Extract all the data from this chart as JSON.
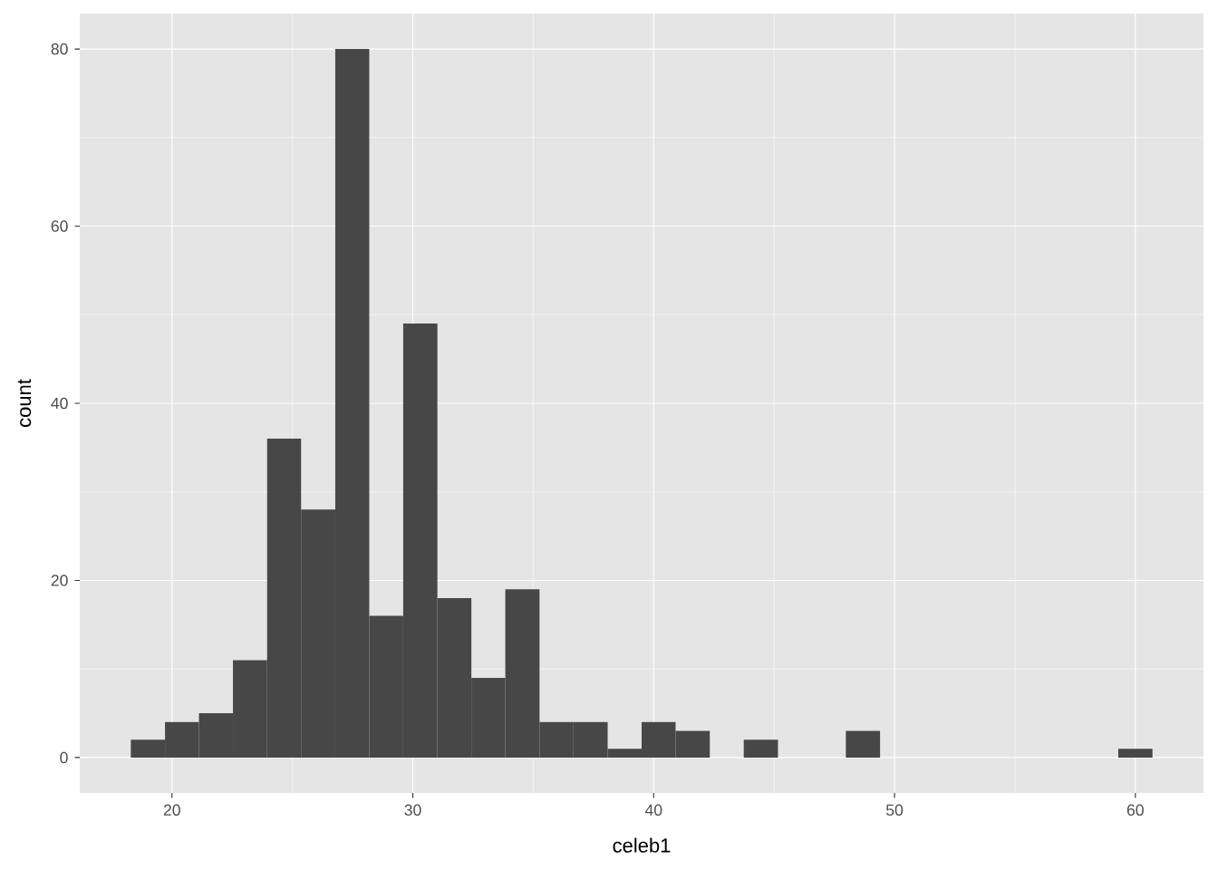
{
  "chart_data": {
    "type": "histogram",
    "xlabel": "celeb1",
    "ylabel": "count",
    "bins": [
      18.29,
      19.71,
      21.12,
      22.53,
      23.95,
      25.36,
      26.78,
      28.19,
      29.6,
      31.02,
      32.43,
      33.84,
      35.26,
      36.67,
      38.09,
      39.5,
      40.91,
      42.33,
      43.74,
      45.16,
      46.57,
      47.98,
      49.4,
      50.81,
      52.22,
      53.64,
      55.05,
      56.47,
      57.88,
      59.29,
      60.71
    ],
    "values": [
      2,
      4,
      5,
      11,
      36,
      28,
      80,
      16,
      49,
      18,
      9,
      19,
      4,
      4,
      1,
      4,
      3,
      0,
      2,
      0,
      0,
      3,
      0,
      0,
      0,
      0,
      0,
      0,
      0,
      1
    ],
    "color": "#474747",
    "xlim": [
      16.17,
      62.83
    ],
    "ylim": [
      -4,
      84
    ],
    "xticks": [
      20,
      30,
      40,
      50,
      60
    ],
    "yticks": [
      0,
      20,
      40,
      60,
      80
    ],
    "grid": true
  }
}
